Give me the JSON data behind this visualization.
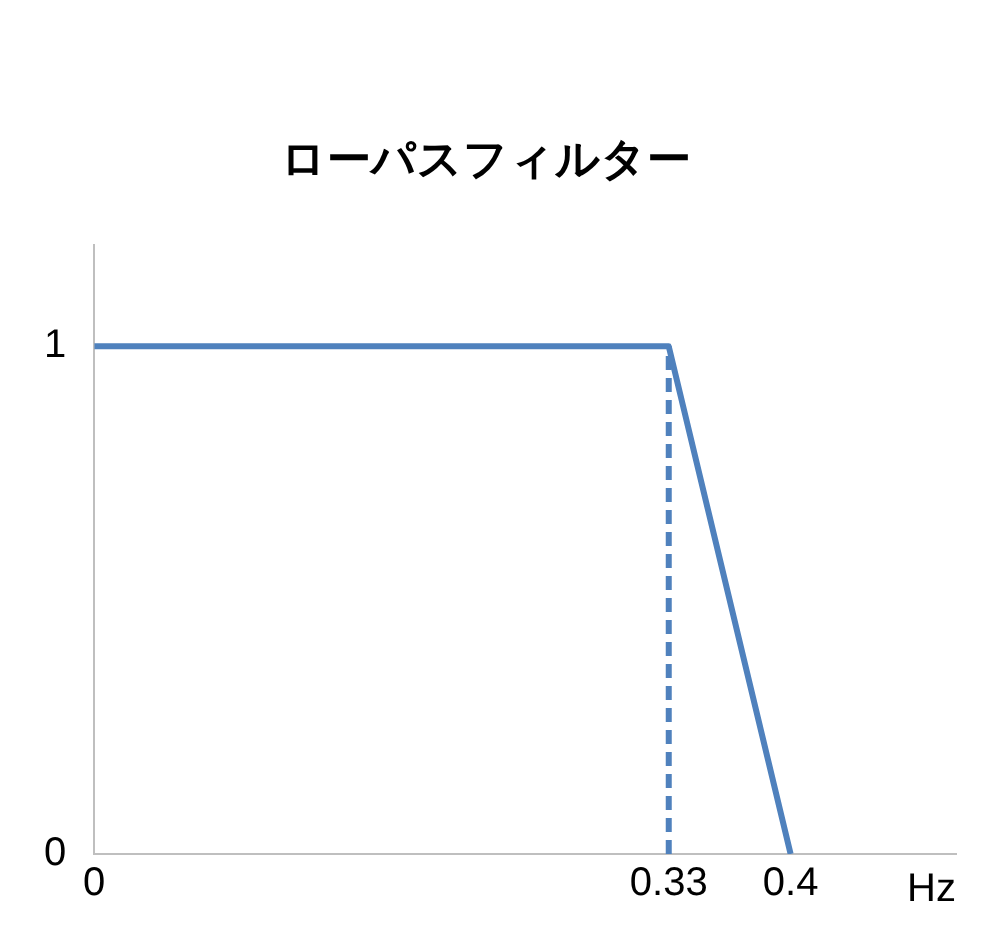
{
  "chart_data": {
    "type": "line",
    "title": "ローパスフィルター",
    "xlabel": "Hz",
    "series": [
      {
        "color": "#4f81bd",
        "x": [
          0,
          0.33,
          0.4
        ],
        "values": [
          1,
          1,
          0
        ],
        "line_style": "solid"
      },
      {
        "color": "#4f81bd",
        "x": [
          0.33,
          0.33
        ],
        "values": [
          0,
          1
        ],
        "line_style": "dashed"
      }
    ],
    "xlim": [
      0,
      0.495
    ],
    "xticks": [
      0,
      0.33,
      0.4
    ],
    "ylim": [
      0,
      1.2
    ],
    "yticks": [
      0,
      1
    ],
    "grid": false,
    "legend": false,
    "marker": "none"
  }
}
